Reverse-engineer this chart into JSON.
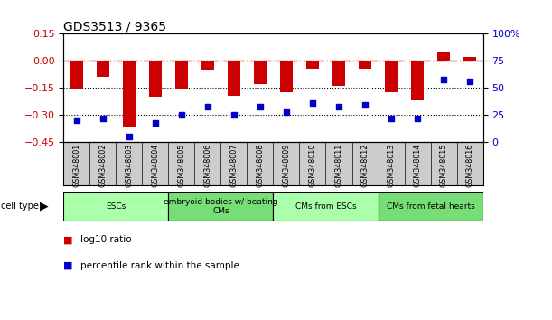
{
  "title": "GDS3513 / 9365",
  "samples": [
    "GSM348001",
    "GSM348002",
    "GSM348003",
    "GSM348004",
    "GSM348005",
    "GSM348006",
    "GSM348007",
    "GSM348008",
    "GSM348009",
    "GSM348010",
    "GSM348011",
    "GSM348012",
    "GSM348013",
    "GSM348014",
    "GSM348015",
    "GSM348016"
  ],
  "log10_ratio": [
    -0.155,
    -0.09,
    -0.37,
    -0.2,
    -0.155,
    -0.05,
    -0.195,
    -0.13,
    -0.175,
    -0.045,
    -0.14,
    -0.045,
    -0.175,
    -0.22,
    0.05,
    0.02
  ],
  "percentile_rank": [
    20,
    22,
    5,
    18,
    25,
    33,
    25,
    33,
    28,
    36,
    33,
    34,
    22,
    22,
    58,
    56
  ],
  "bar_color": "#cc0000",
  "dot_color": "#0000cc",
  "ref_line_color": "#cc0000",
  "hline_color": "#000000",
  "ylim_left": [
    -0.45,
    0.15
  ],
  "ylim_right": [
    0,
    100
  ],
  "yticks_left": [
    0.15,
    0.0,
    -0.15,
    -0.3,
    -0.45
  ],
  "yticks_right": [
    100,
    75,
    50,
    25,
    0
  ],
  "cell_type_groups": [
    {
      "label": "ESCs",
      "start": 0,
      "end": 3,
      "color": "#aaffaa"
    },
    {
      "label": "embryoid bodies w/ beating\nCMs",
      "start": 4,
      "end": 7,
      "color": "#77dd77"
    },
    {
      "label": "CMs from ESCs",
      "start": 8,
      "end": 11,
      "color": "#aaffaa"
    },
    {
      "label": "CMs from fetal hearts",
      "start": 12,
      "end": 15,
      "color": "#77dd77"
    }
  ],
  "legend_items": [
    {
      "label": "log10 ratio",
      "color": "#cc0000"
    },
    {
      "label": "percentile rank within the sample",
      "color": "#0000cc"
    }
  ],
  "bg_color": "#ffffff",
  "sample_bg_color": "#cccccc"
}
